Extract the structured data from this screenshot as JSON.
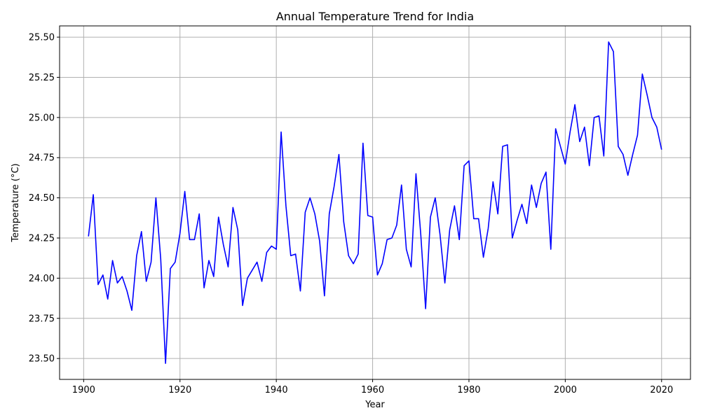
{
  "chart_data": {
    "type": "line",
    "title": "Annual Temperature Trend for India",
    "xlabel": "Year",
    "ylabel": "Temperature (°C)",
    "xlim": [
      1895,
      2026
    ],
    "ylim": [
      23.37,
      25.57
    ],
    "xticks": [
      1900,
      1920,
      1940,
      1960,
      1980,
      2000,
      2020
    ],
    "yticks": [
      23.5,
      23.75,
      24.0,
      24.25,
      24.5,
      24.75,
      25.0,
      25.25,
      25.5
    ],
    "grid": true,
    "line_color": "#0000ff",
    "series": [
      {
        "x": [
          1901,
          1902,
          1903,
          1904,
          1905,
          1906,
          1907,
          1908,
          1909,
          1910,
          1911,
          1912,
          1913,
          1914,
          1915,
          1916,
          1917,
          1918,
          1919,
          1920,
          1921,
          1922,
          1923,
          1924,
          1925,
          1926,
          1927,
          1928,
          1929,
          1930,
          1931,
          1932,
          1933,
          1934,
          1935,
          1936,
          1937,
          1938,
          1939,
          1940,
          1941,
          1942,
          1943,
          1944,
          1945,
          1946,
          1947,
          1948,
          1949,
          1950,
          1951,
          1952,
          1953,
          1954,
          1955,
          1956,
          1957,
          1958,
          1959,
          1960,
          1961,
          1962,
          1963,
          1964,
          1965,
          1966,
          1967,
          1968,
          1969,
          1970,
          1971,
          1972,
          1973,
          1974,
          1975,
          1976,
          1977,
          1978,
          1979,
          1980,
          1981,
          1982,
          1983,
          1984,
          1985,
          1986,
          1987,
          1988,
          1989,
          1990,
          1991,
          1992,
          1993,
          1994,
          1995,
          1996,
          1997,
          1998,
          1999,
          2000,
          2001,
          2002,
          2003,
          2004,
          2005,
          2006,
          2007,
          2008,
          2009,
          2010,
          2011,
          2012,
          2013,
          2014,
          2015,
          2016,
          2017,
          2018,
          2019,
          2020
        ],
        "values": [
          24.26,
          24.52,
          23.96,
          24.02,
          23.87,
          24.11,
          23.97,
          24.01,
          23.92,
          23.8,
          24.14,
          24.29,
          23.98,
          24.1,
          24.5,
          24.12,
          23.47,
          24.06,
          24.1,
          24.28,
          24.54,
          24.24,
          24.24,
          24.4,
          23.94,
          24.11,
          24.01,
          24.38,
          24.21,
          24.07,
          24.44,
          24.3,
          23.83,
          24.0,
          24.05,
          24.1,
          23.98,
          24.16,
          24.2,
          24.18,
          24.91,
          24.45,
          24.14,
          24.15,
          23.92,
          24.41,
          24.5,
          24.4,
          24.23,
          23.89,
          24.4,
          24.57,
          24.77,
          24.35,
          24.14,
          24.09,
          24.15,
          24.84,
          24.39,
          24.38,
          24.02,
          24.09,
          24.24,
          24.25,
          24.33,
          24.58,
          24.18,
          24.07,
          24.65,
          24.27,
          23.81,
          24.38,
          24.5,
          24.27,
          23.97,
          24.3,
          24.45,
          24.24,
          24.7,
          24.73,
          24.37,
          24.37,
          24.13,
          24.31,
          24.6,
          24.4,
          24.82,
          24.83,
          24.25,
          24.36,
          24.46,
          24.34,
          24.58,
          24.44,
          24.59,
          24.66,
          24.18,
          24.93,
          24.82,
          24.71,
          24.91,
          25.08,
          24.85,
          24.94,
          24.7,
          25.0,
          25.01,
          24.76,
          25.47,
          25.41,
          24.82,
          24.77,
          24.64,
          24.77,
          24.89,
          25.27,
          25.14,
          25.0,
          24.94,
          24.8
        ]
      }
    ]
  }
}
